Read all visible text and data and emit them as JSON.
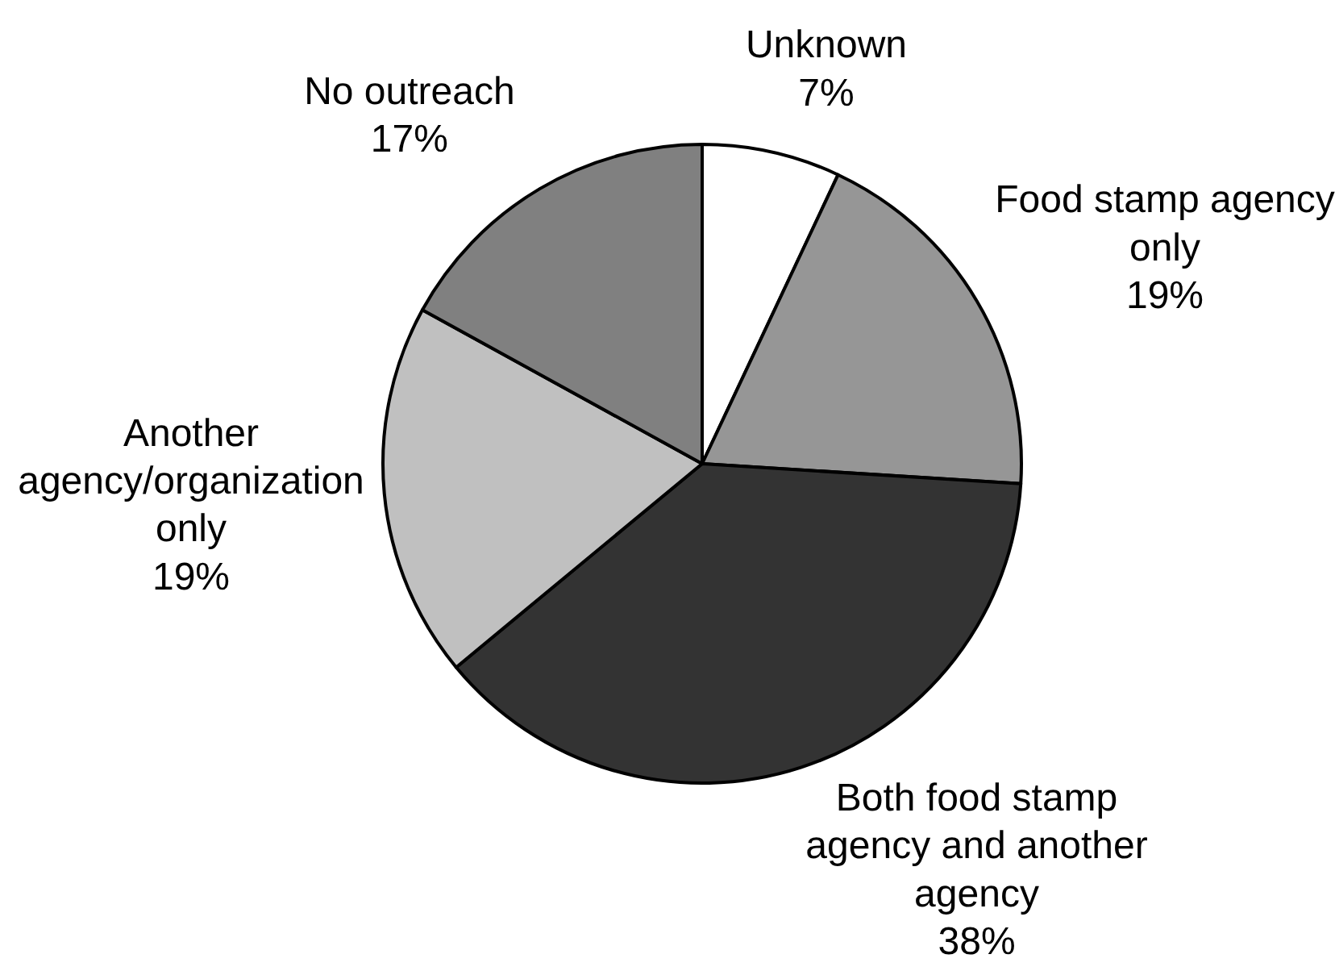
{
  "chart_data": {
    "type": "pie",
    "categories": [
      "Unknown",
      "Food stamp agency only",
      "Both food stamp agency and another agency",
      "Another agency/organization only",
      "No outreach"
    ],
    "values": [
      7,
      19,
      38,
      19,
      17
    ],
    "value_labels": [
      "7%",
      "19%",
      "38%",
      "19%",
      "17%"
    ],
    "colors": [
      "#ffffff",
      "#969696",
      "#333333",
      "#c0c0c0",
      "#808080"
    ]
  }
}
